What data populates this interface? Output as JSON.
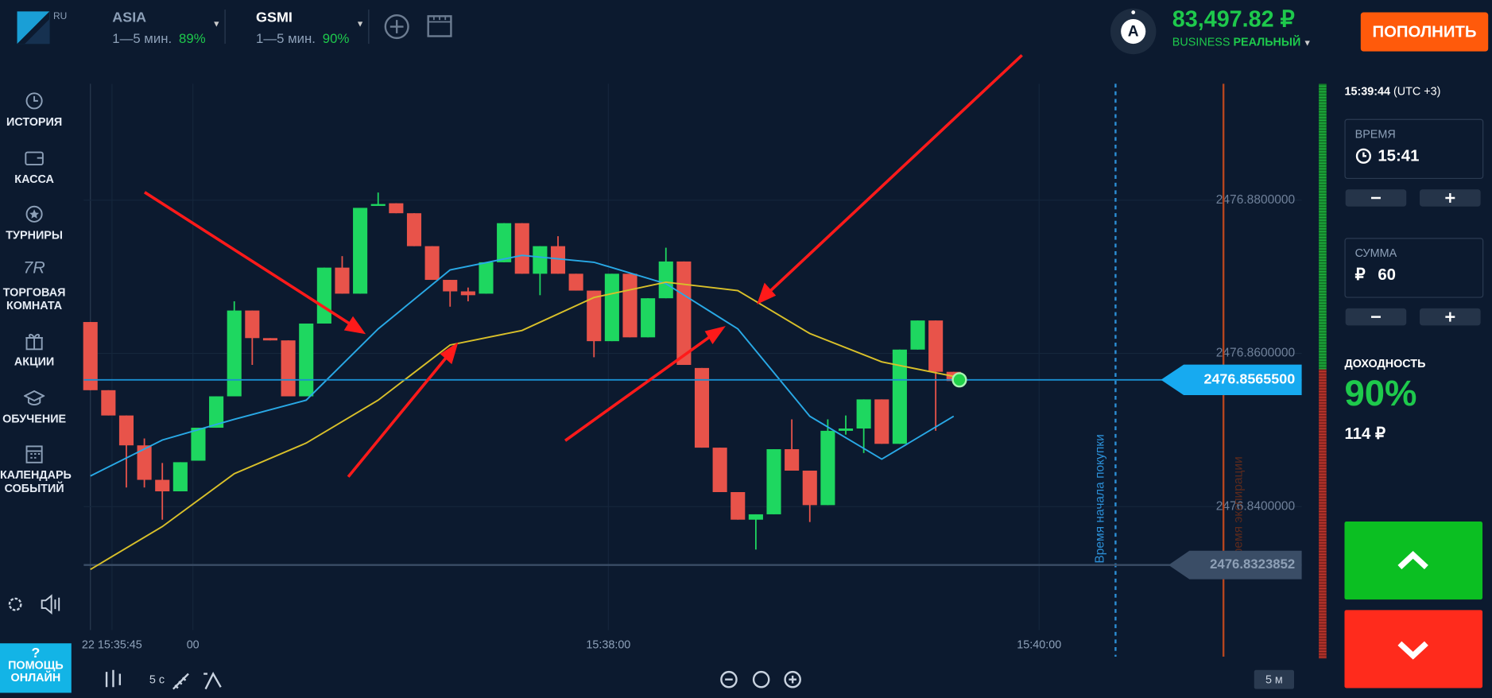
{
  "header": {
    "logo_badge": "RU",
    "assets": [
      {
        "name": "ASIA",
        "duration": "1—5 мин.",
        "payout": "89%"
      },
      {
        "name": "GSMI",
        "duration": "1—5 мин.",
        "payout": "90%"
      }
    ],
    "avatar": "A",
    "balance": "83,497.82 ₽",
    "account_type": "BUSINESS",
    "account_mode": "РЕАЛЬНЫЙ",
    "deposit_button": "ПОПОЛНИТЬ"
  },
  "sidebar": {
    "trading_room_icon": "7R",
    "items": [
      "ИСТОРИЯ",
      "КАССА",
      "ТУРНИРЫ",
      "ТОРГОВАЯ КОМНАТА",
      "АКЦИИ",
      "ОБУЧЕНИЕ",
      "КАЛЕНДАРЬ СОБЫТИЙ"
    ],
    "help_icon": "?",
    "help": "ПОМОЩЬ ОНЛАЙН"
  },
  "toolbar": {
    "timeframe": "5 с",
    "zoom_period": "5 м"
  },
  "panel": {
    "clock": "15:39:44",
    "timezone": "(UTC +3)",
    "time_label": "ВРЕМЯ",
    "time_value": "15:41",
    "amount_label": "СУММА",
    "currency": "₽",
    "amount": "60",
    "payout_label": "ДОХОДНОСТЬ",
    "payout": "90%",
    "profit": "114 ₽"
  },
  "chart_data": {
    "type": "candlestick",
    "xlim": [
      -0.37,
      67.35
    ],
    "ylim": [
      2476.8239,
      2476.8952
    ],
    "yticks": [
      {
        "value": 2476.88,
        "label": "2476.8800000"
      },
      {
        "value": 2476.86,
        "label": "2476.8600000"
      },
      {
        "value": 2476.84,
        "label": "2476.8400000"
      }
    ],
    "xticks": [
      {
        "value": 1.2,
        "label": "22 15:35:45"
      },
      {
        "value": 5.7,
        "label": "00"
      },
      {
        "value": 28.8,
        "label": "15:38:00"
      },
      {
        "value": 52.75,
        "label": "15:40:00"
      }
    ],
    "up_color": "#1ed760",
    "down_color": "#e8534a",
    "candles": [
      {
        "open": 2476.8641,
        "high": 2476.8641,
        "low": 2476.8552,
        "close": 2476.8552
      },
      {
        "open": 2476.8552,
        "high": 2476.8552,
        "low": 2476.8519,
        "close": 2476.8519
      },
      {
        "open": 2476.8519,
        "high": 2476.8519,
        "low": 2476.8425,
        "close": 2476.848
      },
      {
        "open": 2476.848,
        "high": 2476.8489,
        "low": 2476.8425,
        "close": 2476.8435
      },
      {
        "open": 2476.8435,
        "high": 2476.8457,
        "low": 2476.8383,
        "close": 2476.842
      },
      {
        "open": 2476.842,
        "high": 2476.8458,
        "low": 2476.842,
        "close": 2476.8458
      },
      {
        "open": 2476.846,
        "high": 2476.8503,
        "low": 2476.846,
        "close": 2476.8503
      },
      {
        "open": 2476.8503,
        "high": 2476.8544,
        "low": 2476.8503,
        "close": 2476.8544
      },
      {
        "open": 2476.8544,
        "high": 2476.8668,
        "low": 2476.8544,
        "close": 2476.8656
      },
      {
        "open": 2476.8656,
        "high": 2476.8656,
        "low": 2476.8585,
        "close": 2476.862
      },
      {
        "open": 2476.862,
        "high": 2476.862,
        "low": 2476.8617,
        "close": 2476.8617
      },
      {
        "open": 2476.8617,
        "high": 2476.8617,
        "low": 2476.8544,
        "close": 2476.8544
      },
      {
        "open": 2476.8544,
        "high": 2476.8639,
        "low": 2476.8544,
        "close": 2476.8639
      },
      {
        "open": 2476.8639,
        "high": 2476.8712,
        "low": 2476.8639,
        "close": 2476.8712
      },
      {
        "open": 2476.8712,
        "high": 2476.8727,
        "low": 2476.8678,
        "close": 2476.8678
      },
      {
        "open": 2476.8678,
        "high": 2476.879,
        "low": 2476.8678,
        "close": 2476.879
      },
      {
        "open": 2476.8793,
        "high": 2476.881,
        "low": 2476.8793,
        "close": 2476.8795
      },
      {
        "open": 2476.8796,
        "high": 2476.8796,
        "low": 2476.8783,
        "close": 2476.8783
      },
      {
        "open": 2476.8783,
        "high": 2476.8783,
        "low": 2476.874,
        "close": 2476.874
      },
      {
        "open": 2476.874,
        "high": 2476.874,
        "low": 2476.8696,
        "close": 2476.8696
      },
      {
        "open": 2476.8696,
        "high": 2476.8696,
        "low": 2476.8661,
        "close": 2476.8681
      },
      {
        "open": 2476.8681,
        "high": 2476.8686,
        "low": 2476.8668,
        "close": 2476.8676
      },
      {
        "open": 2476.8678,
        "high": 2476.8719,
        "low": 2476.8678,
        "close": 2476.8719
      },
      {
        "open": 2476.8719,
        "high": 2476.877,
        "low": 2476.8719,
        "close": 2476.877
      },
      {
        "open": 2476.877,
        "high": 2476.877,
        "low": 2476.8704,
        "close": 2476.8704
      },
      {
        "open": 2476.8704,
        "high": 2476.874,
        "low": 2476.8676,
        "close": 2476.874
      },
      {
        "open": 2476.874,
        "high": 2476.8753,
        "low": 2476.8704,
        "close": 2476.8704
      },
      {
        "open": 2476.8704,
        "high": 2476.8704,
        "low": 2476.8682,
        "close": 2476.8682
      },
      {
        "open": 2476.8682,
        "high": 2476.8682,
        "low": 2476.8595,
        "close": 2476.8616
      },
      {
        "open": 2476.8616,
        "high": 2476.8704,
        "low": 2476.8616,
        "close": 2476.8704
      },
      {
        "open": 2476.8704,
        "high": 2476.8704,
        "low": 2476.8621,
        "close": 2476.8621
      },
      {
        "open": 2476.8621,
        "high": 2476.8672,
        "low": 2476.8621,
        "close": 2476.8672
      },
      {
        "open": 2476.8672,
        "high": 2476.8738,
        "low": 2476.8672,
        "close": 2476.872
      },
      {
        "open": 2476.872,
        "high": 2476.872,
        "low": 2476.8585,
        "close": 2476.8585
      },
      {
        "open": 2476.8581,
        "high": 2476.8581,
        "low": 2476.8477,
        "close": 2476.8477
      },
      {
        "open": 2476.8477,
        "high": 2476.8477,
        "low": 2476.8419,
        "close": 2476.8419
      },
      {
        "open": 2476.8419,
        "high": 2476.8419,
        "low": 2476.8383,
        "close": 2476.8383
      },
      {
        "open": 2476.8383,
        "high": 2476.839,
        "low": 2476.8344,
        "close": 2476.839
      },
      {
        "open": 2476.839,
        "high": 2476.8475,
        "low": 2476.839,
        "close": 2476.8475
      },
      {
        "open": 2476.8475,
        "high": 2476.8514,
        "low": 2476.8447,
        "close": 2476.8447
      },
      {
        "open": 2476.8447,
        "high": 2476.8447,
        "low": 2476.838,
        "close": 2476.8402
      },
      {
        "open": 2476.8402,
        "high": 2476.8514,
        "low": 2476.8402,
        "close": 2476.8499
      },
      {
        "open": 2476.8499,
        "high": 2476.8519,
        "low": 2476.8494,
        "close": 2476.8502
      },
      {
        "open": 2476.8502,
        "high": 2476.854,
        "low": 2476.847,
        "close": 2476.854
      },
      {
        "open": 2476.854,
        "high": 2476.854,
        "low": 2476.8482,
        "close": 2476.8482
      },
      {
        "open": 2476.8482,
        "high": 2476.8605,
        "low": 2476.8482,
        "close": 2476.8605
      },
      {
        "open": 2476.8605,
        "high": 2476.8643,
        "low": 2476.8605,
        "close": 2476.8643
      },
      {
        "open": 2476.8643,
        "high": 2476.8643,
        "low": 2476.8499,
        "close": 2476.8576
      },
      {
        "open": 2476.8576,
        "high": 2476.8576,
        "low": 2476.8564,
        "close": 2476.8564
      }
    ],
    "series": [
      {
        "color": "#29a9e6",
        "x": [
          0,
          4,
          8,
          12,
          16,
          20,
          24,
          28,
          32,
          36,
          40,
          44,
          48
        ],
        "values": [
          2476.844,
          2476.8487,
          2476.8514,
          2476.8539,
          2476.8632,
          2476.8709,
          2476.8728,
          2476.8719,
          2476.8691,
          2476.8632,
          2476.8518,
          2476.8462,
          2476.8518
        ]
      },
      {
        "color": "#d9c02a",
        "x": [
          0,
          4,
          8,
          12,
          16,
          20,
          24,
          28,
          32,
          36,
          40,
          44,
          48
        ],
        "values": [
          2476.8318,
          2476.8374,
          2476.8443,
          2476.8483,
          2476.8539,
          2476.8611,
          2476.863,
          2476.8673,
          2476.8693,
          2476.8682,
          2476.8626,
          2476.8589,
          2476.857
        ]
      }
    ],
    "current_price": {
      "value": 2476.85655,
      "label": "2476.8565500"
    },
    "level": {
      "value": 2476.8323852,
      "label": "2476.8323852"
    },
    "purchase_time": {
      "x": 57.0,
      "label": "Время начала покупки"
    },
    "expiration": {
      "x": 63.0,
      "label": "Время экспирации"
    }
  }
}
